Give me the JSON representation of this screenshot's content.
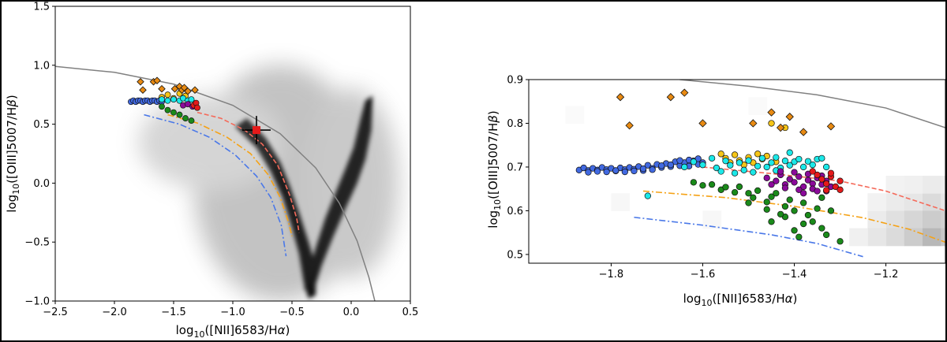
{
  "colors": {
    "blue": "#4169e1",
    "cyan": "#1be8e8",
    "green": "#1a8a1a",
    "purple": "#8b0a9a",
    "red": "#e51a1a",
    "gold": "#f5c518",
    "orange_diamond": "#e88a12",
    "salmon_curve": "#f56a5a",
    "orange_curve": "#f5a216",
    "blue_curve": "#4a78e8",
    "gray_curve": "#808080"
  },
  "chart_data": [
    {
      "type": "scatter",
      "xlabel": "log$_{10}$([NII]6583/H$\\alpha$)",
      "ylabel": "log$_{10}$([OIII]5007/H$\\beta$)",
      "xlabel_parts": [
        "log",
        "10",
        "([NII]6583/H",
        "α",
        ")"
      ],
      "ylabel_parts": [
        "log",
        "10",
        "([OIII]5007/H",
        "β",
        ")"
      ],
      "xlim": [
        -2.5,
        0.5
      ],
      "ylim": [
        -1.0,
        1.5
      ],
      "xticks": [
        -2.5,
        -2.0,
        -1.5,
        -1.0,
        -0.5,
        0.0,
        0.5
      ],
      "xtick_labels": [
        "−2.5",
        "−2.0",
        "−1.5",
        "−1.0",
        "−0.5",
        "0.0",
        "0.5"
      ],
      "yticks": [
        -1.0,
        -0.5,
        0.0,
        0.5,
        1.0,
        1.5
      ],
      "ytick_labels": [
        "−1.0",
        "−0.5",
        "0.0",
        "0.5",
        "1.0",
        "1.5"
      ],
      "background": "grayscale 2D density of SDSS galaxies: star-forming branch from (-1.0,0.6) down to (-0.45,-0.85), AGN branch from (-0.3,-0.3) up to (0.15,0.75)",
      "curves": [
        {
          "color": "gray",
          "style": "solid",
          "x": [
            -2.5,
            -2.0,
            -1.5,
            -1.0,
            -0.6,
            -0.3,
            -0.1,
            0.05,
            0.15,
            0.2
          ],
          "y": [
            0.99,
            0.94,
            0.84,
            0.66,
            0.42,
            0.13,
            -0.17,
            -0.49,
            -0.8,
            -1.0
          ]
        },
        {
          "color": "salmon",
          "style": "dashed",
          "x": [
            -1.3,
            -1.1,
            -0.9,
            -0.75,
            -0.62,
            -0.52,
            -0.46,
            -0.44
          ],
          "y": [
            0.6,
            0.55,
            0.45,
            0.33,
            0.15,
            -0.1,
            -0.3,
            -0.42
          ]
        },
        {
          "color": "orange",
          "style": "dashdot",
          "x": [
            -1.55,
            -1.3,
            -1.05,
            -0.85,
            -0.7,
            -0.6,
            -0.53,
            -0.5
          ],
          "y": [
            0.58,
            0.51,
            0.39,
            0.25,
            0.07,
            -0.12,
            -0.33,
            -0.45
          ]
        },
        {
          "color": "blue",
          "style": "dashdot",
          "x": [
            -1.75,
            -1.45,
            -1.2,
            -0.98,
            -0.8,
            -0.68,
            -0.59,
            -0.55
          ],
          "y": [
            0.58,
            0.5,
            0.39,
            0.24,
            0.06,
            -0.12,
            -0.36,
            -0.62
          ]
        }
      ],
      "error_point": {
        "x": -0.8,
        "y": 0.45,
        "xerr": 0.12,
        "yerr": 0.12,
        "marker": "square",
        "color": "red"
      },
      "series": [
        {
          "color": "blue",
          "x": [
            -1.86,
            -1.84,
            -1.82,
            -1.8,
            -1.78,
            -1.76,
            -1.74,
            -1.72,
            -1.7,
            -1.68,
            -1.66,
            -1.64,
            -1.62,
            -1.6
          ],
          "y": [
            0.69,
            0.7,
            0.69,
            0.7,
            0.7,
            0.69,
            0.7,
            0.7,
            0.69,
            0.7,
            0.7,
            0.69,
            0.7,
            0.69
          ]
        },
        {
          "color": "cyan",
          "x": [
            -1.6,
            -1.55,
            -1.5,
            -1.45,
            -1.42,
            -1.38,
            -1.35
          ],
          "y": [
            0.71,
            0.7,
            0.71,
            0.7,
            0.72,
            0.7,
            0.71
          ]
        },
        {
          "color": "green",
          "x": [
            -1.6,
            -1.55,
            -1.5,
            -1.45,
            -1.4,
            -1.35
          ],
          "y": [
            0.65,
            0.62,
            0.6,
            0.58,
            0.55,
            0.53
          ]
        },
        {
          "color": "purple",
          "x": [
            -1.42,
            -1.38,
            -1.34
          ],
          "y": [
            0.66,
            0.67,
            0.65
          ]
        },
        {
          "color": "red",
          "x": [
            -1.33,
            -1.31,
            -1.3
          ],
          "y": [
            0.66,
            0.68,
            0.64
          ]
        },
        {
          "color": "gold",
          "x": [
            -1.6,
            -1.55,
            -1.5,
            -1.45,
            -1.4
          ],
          "y": [
            0.73,
            0.75,
            0.72,
            0.76,
            0.74
          ]
        }
      ],
      "diamonds": {
        "color": "orange",
        "x": [
          -1.78,
          -1.67,
          -1.64,
          -1.76,
          -1.6,
          -1.49,
          -1.45,
          -1.43,
          -1.41,
          -1.38,
          -1.32
        ],
        "y": [
          0.86,
          0.86,
          0.87,
          0.79,
          0.8,
          0.8,
          0.82,
          0.79,
          0.81,
          0.78,
          0.79
        ]
      }
    },
    {
      "type": "scatter",
      "xlabel": "log$_{10}$([NII]6583/H$\\alpha$)",
      "ylabel": "log$_{10}$([OIII]5007/H$\\beta$)",
      "xlabel_parts": [
        "log",
        "10",
        "([NII]6583/H",
        "α",
        ")"
      ],
      "ylabel_parts": [
        "log",
        "10",
        "([OIII]5007/H",
        "β",
        ")"
      ],
      "xlim": [
        -1.98,
        -1.07
      ],
      "ylim": [
        0.48,
        0.9
      ],
      "xticks": [
        -1.8,
        -1.6,
        -1.4,
        -1.2
      ],
      "xtick_labels": [
        "−1.8",
        "−1.6",
        "−1.4",
        "−1.2"
      ],
      "yticks": [
        0.5,
        0.6,
        0.7,
        0.8,
        0.9
      ],
      "ytick_labels": [
        "0.5",
        "0.6",
        "0.7",
        "0.8",
        "0.9"
      ],
      "curves": [
        {
          "color": "gray",
          "style": "solid",
          "x": [
            -1.65,
            -1.5,
            -1.35,
            -1.2,
            -1.07
          ],
          "y": [
            0.9,
            0.885,
            0.865,
            0.835,
            0.79
          ]
        },
        {
          "color": "salmon",
          "style": "dashed",
          "x": [
            -1.6,
            -1.45,
            -1.3,
            -1.2,
            -1.07
          ],
          "y": [
            0.7,
            0.685,
            0.668,
            0.645,
            0.6
          ]
        },
        {
          "color": "orange",
          "style": "dashdot",
          "x": [
            -1.73,
            -1.55,
            -1.4,
            -1.25,
            -1.15,
            -1.07
          ],
          "y": [
            0.645,
            0.63,
            0.61,
            0.584,
            0.558,
            0.528
          ]
        },
        {
          "color": "blue",
          "style": "dashdot",
          "x": [
            -1.75,
            -1.6,
            -1.45,
            -1.35,
            -1.25
          ],
          "y": [
            0.585,
            0.567,
            0.545,
            0.525,
            0.495
          ]
        }
      ],
      "series": [
        {
          "color": "blue",
          "x": [
            -1.87,
            -1.86,
            -1.85,
            -1.84,
            -1.83,
            -1.82,
            -1.81,
            -1.8,
            -1.79,
            -1.78,
            -1.77,
            -1.76,
            -1.75,
            -1.74,
            -1.73,
            -1.72,
            -1.71,
            -1.7,
            -1.69,
            -1.68,
            -1.67,
            -1.66,
            -1.65,
            -1.64,
            -1.63,
            -1.62,
            -1.61,
            -1.6,
            -1.85,
            -1.83,
            -1.81,
            -1.79,
            -1.77,
            -1.75,
            -1.73,
            -1.71,
            -1.69,
            -1.67,
            -1.65,
            -1.63,
            -1.61
          ],
          "y": [
            0.693,
            0.698,
            0.692,
            0.697,
            0.693,
            0.699,
            0.694,
            0.697,
            0.691,
            0.698,
            0.694,
            0.699,
            0.695,
            0.701,
            0.692,
            0.704,
            0.697,
            0.706,
            0.699,
            0.708,
            0.701,
            0.712,
            0.703,
            0.71,
            0.702,
            0.714,
            0.706,
            0.71,
            0.688,
            0.69,
            0.689,
            0.692,
            0.689,
            0.691,
            0.696,
            0.694,
            0.703,
            0.705,
            0.715,
            0.716,
            0.719
          ]
        },
        {
          "color": "cyan",
          "x": [
            -1.64,
            -1.62,
            -1.6,
            -1.58,
            -1.57,
            -1.55,
            -1.54,
            -1.52,
            -1.51,
            -1.5,
            -1.48,
            -1.47,
            -1.46,
            -1.45,
            -1.44,
            -1.43,
            -1.42,
            -1.41,
            -1.4,
            -1.39,
            -1.38,
            -1.37,
            -1.36,
            -1.35,
            -1.34,
            -1.33,
            -1.56,
            -1.53,
            -1.49,
            -1.44,
            -1.41,
            -1.72
          ],
          "y": [
            0.7,
            0.712,
            0.705,
            0.72,
            0.698,
            0.714,
            0.704,
            0.71,
            0.693,
            0.715,
            0.702,
            0.72,
            0.7,
            0.71,
            0.722,
            0.698,
            0.714,
            0.704,
            0.712,
            0.718,
            0.7,
            0.713,
            0.705,
            0.718,
            0.72,
            0.7,
            0.69,
            0.686,
            0.688,
            0.692,
            0.733,
            0.634
          ]
        },
        {
          "color": "green",
          "x": [
            -1.62,
            -1.6,
            -1.58,
            -1.56,
            -1.55,
            -1.53,
            -1.52,
            -1.5,
            -1.49,
            -1.48,
            -1.46,
            -1.45,
            -1.44,
            -1.42,
            -1.41,
            -1.4,
            -1.38,
            -1.37,
            -1.35,
            -1.34,
            -1.32,
            -1.5,
            -1.46,
            -1.42,
            -1.38,
            -1.34,
            -1.45,
            -1.4,
            -1.33,
            -1.3,
            -1.43,
            -1.36,
            -1.39
          ],
          "y": [
            0.665,
            0.658,
            0.66,
            0.648,
            0.654,
            0.642,
            0.655,
            0.64,
            0.63,
            0.646,
            0.62,
            0.632,
            0.64,
            0.61,
            0.625,
            0.6,
            0.618,
            0.59,
            0.605,
            0.63,
            0.6,
            0.618,
            0.603,
            0.586,
            0.57,
            0.56,
            0.575,
            0.555,
            0.545,
            0.53,
            0.592,
            0.575,
            0.54
          ]
        },
        {
          "color": "purple",
          "x": [
            -1.46,
            -1.44,
            -1.43,
            -1.42,
            -1.41,
            -1.4,
            -1.39,
            -1.38,
            -1.37,
            -1.36,
            -1.35,
            -1.34,
            -1.33,
            -1.32,
            -1.45,
            -1.42,
            -1.39,
            -1.36,
            -1.33,
            -1.4,
            -1.37,
            -1.34,
            -1.43,
            -1.38,
            -1.35
          ],
          "y": [
            0.675,
            0.668,
            0.682,
            0.66,
            0.672,
            0.665,
            0.678,
            0.655,
            0.67,
            0.662,
            0.675,
            0.66,
            0.668,
            0.655,
            0.66,
            0.652,
            0.648,
            0.65,
            0.645,
            0.688,
            0.684,
            0.68,
            0.69,
            0.64,
            0.645
          ]
        },
        {
          "color": "red",
          "x": [
            -1.34,
            -1.33,
            -1.32,
            -1.31,
            -1.3,
            -1.32,
            -1.35,
            -1.3,
            -1.33,
            -1.36
          ],
          "y": [
            0.672,
            0.662,
            0.678,
            0.655,
            0.668,
            0.686,
            0.682,
            0.648,
            0.647,
            0.69
          ]
        },
        {
          "color": "gold",
          "x": [
            -1.56,
            -1.55,
            -1.53,
            -1.52,
            -1.5,
            -1.49,
            -1.47,
            -1.45,
            -1.44,
            -1.42,
            -1.54,
            -1.51,
            -1.48,
            -1.46
          ],
          "y": [
            0.73,
            0.72,
            0.728,
            0.715,
            0.722,
            0.71,
            0.718,
            0.8,
            0.712,
            0.79,
            0.71,
            0.705,
            0.73,
            0.725
          ]
        }
      ],
      "diamonds": {
        "color": "orange",
        "x": [
          -1.78,
          -1.67,
          -1.64,
          -1.76,
          -1.6,
          -1.49,
          -1.45,
          -1.43,
          -1.41,
          -1.38,
          -1.32
        ],
        "y": [
          0.86,
          0.86,
          0.87,
          0.795,
          0.8,
          0.8,
          0.825,
          0.79,
          0.815,
          0.78,
          0.793
        ]
      }
    }
  ]
}
